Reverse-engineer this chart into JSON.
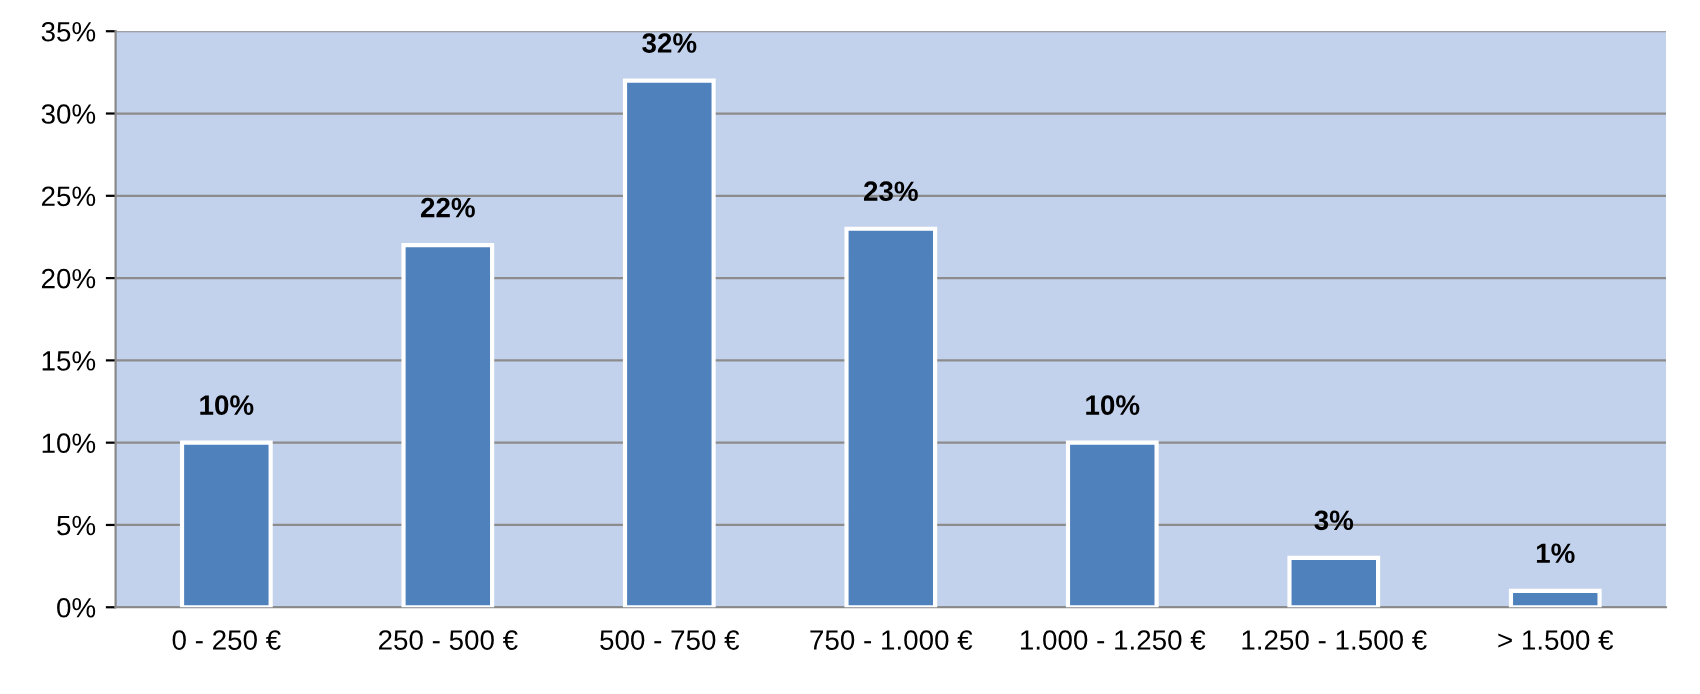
{
  "chart_data": {
    "type": "bar",
    "categories": [
      "0 - 250 €",
      "250 - 500 €",
      "500 - 750 €",
      "750 - 1.000 €",
      "1.000 - 1.250 €",
      "1.250 - 1.500 €",
      "> 1.500 €"
    ],
    "values": [
      10,
      22,
      32,
      23,
      10,
      3,
      1
    ],
    "value_labels": [
      "10%",
      "22%",
      "32%",
      "23%",
      "10%",
      "3%",
      "1%"
    ],
    "color": "#4f81bd",
    "ylim": [
      0,
      35
    ],
    "yticks": [
      {
        "value": 0,
        "label": "0%"
      },
      {
        "value": 5,
        "label": "5%"
      },
      {
        "value": 10,
        "label": "10%"
      },
      {
        "value": 15,
        "label": "15%"
      },
      {
        "value": 20,
        "label": "20%"
      },
      {
        "value": 25,
        "label": "25%"
      },
      {
        "value": 30,
        "label": "30%"
      },
      {
        "value": 35,
        "label": "35%"
      }
    ],
    "grid": "y",
    "legend": false
  }
}
